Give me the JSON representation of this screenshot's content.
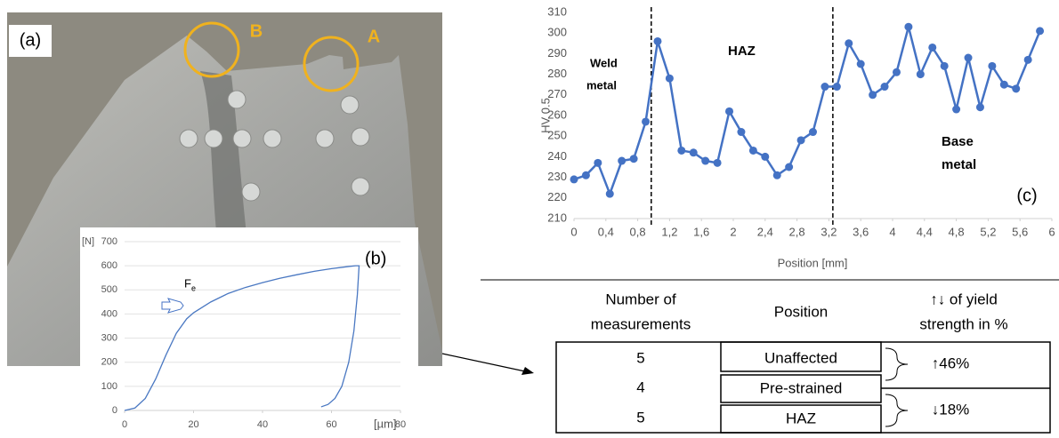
{
  "photo": {
    "panel_label": "(a)",
    "marker_a": "A",
    "marker_b": "B"
  },
  "chart_data": [
    {
      "type": "line",
      "panel_label": "(b)",
      "y_unit": "[N]",
      "x_unit": "[µm]",
      "annotation": {
        "text": "F",
        "subscript": "e"
      },
      "x": [
        0,
        3,
        6,
        9,
        12,
        15,
        18,
        20,
        25,
        30,
        35,
        40,
        45,
        50,
        55,
        60,
        65,
        67,
        68,
        67.5,
        66.5,
        65,
        63,
        61,
        59,
        57
      ],
      "series": [
        {
          "color": "#4a78c2",
          "values": [
            0,
            10,
            50,
            130,
            230,
            320,
            380,
            405,
            450,
            485,
            510,
            530,
            548,
            563,
            577,
            588,
            597,
            600,
            600,
            480,
            330,
            200,
            100,
            50,
            25,
            15
          ]
        }
      ],
      "xlim": [
        0,
        80
      ],
      "xticks": [
        0,
        20,
        40,
        60,
        80
      ],
      "ylim": [
        0,
        700
      ],
      "yticks": [
        0,
        100,
        200,
        300,
        400,
        500,
        600,
        700
      ],
      "grid": true,
      "markers": false
    },
    {
      "type": "line",
      "panel_label": "(c)",
      "y_label": "HV 0.5",
      "x_label": "Position [mm]",
      "annotations": [
        [
          "Weld",
          "metal"
        ],
        [
          "HAZ"
        ],
        [
          "Base",
          "metal"
        ]
      ],
      "vlines": [
        0.97,
        3.25
      ],
      "x": [
        0,
        0.15,
        0.3,
        0.45,
        0.6,
        0.75,
        0.9,
        1.05,
        1.2,
        1.35,
        1.5,
        1.65,
        1.8,
        1.95,
        2.1,
        2.25,
        2.4,
        2.55,
        2.7,
        2.85,
        3,
        3.15,
        3.3,
        3.45,
        3.6,
        3.75,
        3.9,
        4.05,
        4.2,
        4.35,
        4.5,
        4.65,
        4.8,
        4.95,
        5.1,
        5.25,
        5.4,
        5.55,
        5.7,
        5.85
      ],
      "series": [
        {
          "color": "#4472c4",
          "values": [
            229,
            231,
            237,
            222,
            238,
            239,
            257,
            296,
            278,
            243,
            242,
            238,
            237,
            262,
            252,
            243,
            240,
            231,
            235,
            248,
            252,
            274,
            274,
            295,
            285,
            270,
            274,
            281,
            303,
            280,
            293,
            284,
            263,
            288,
            264,
            284,
            275,
            273,
            287,
            301
          ]
        }
      ],
      "xlim": [
        0,
        6
      ],
      "xticks": [
        0,
        {
          "value": 0.4,
          "label": "0,4"
        },
        {
          "value": 0.8,
          "label": "0,8"
        },
        {
          "value": 1.2,
          "label": "1,2"
        },
        {
          "value": 1.6,
          "label": "1,6"
        },
        2,
        {
          "value": 2.4,
          "label": "2,4"
        },
        {
          "value": 2.8,
          "label": "2,8"
        },
        {
          "value": 3.2,
          "label": "3,2"
        },
        {
          "value": 3.6,
          "label": "3,6"
        },
        4,
        {
          "value": 4.4,
          "label": "4,4"
        },
        {
          "value": 4.8,
          "label": "4,8"
        },
        {
          "value": 5.2,
          "label": "5,2"
        },
        {
          "value": 5.6,
          "label": "5,6"
        },
        6
      ],
      "ylim": [
        210,
        310
      ],
      "yticks": [
        210,
        220,
        230,
        240,
        250,
        260,
        270,
        280,
        290,
        300,
        310
      ],
      "grid": false,
      "markers": true
    }
  ],
  "table": {
    "header": [
      [
        "Number of",
        "measurements"
      ],
      [
        "Position"
      ],
      [
        "↑↓ of yield",
        "strength in %"
      ]
    ],
    "counts": [
      "5",
      "4",
      "5"
    ],
    "positions": [
      "Unaffected",
      "Pre-strained",
      "HAZ"
    ],
    "changes": [
      "↑46%",
      "↓18%"
    ]
  }
}
